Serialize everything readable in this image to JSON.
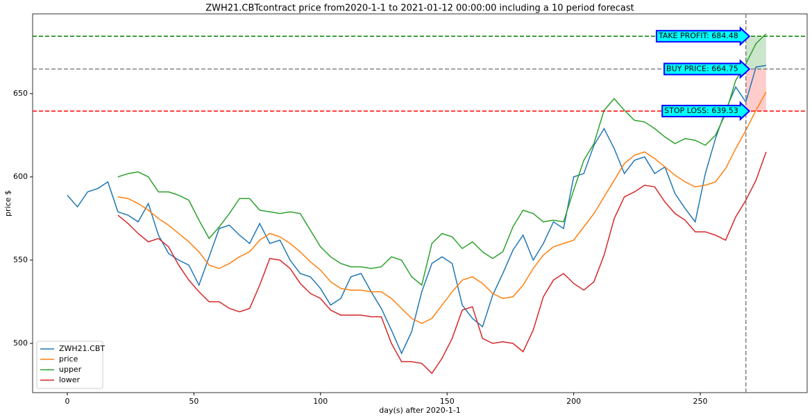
{
  "chart_data": {
    "type": "line",
    "title": "ZWH21.CBTcontract price from2020-1-1 to 2021-01-12 00:00:00 including a 10 period forecast",
    "xlabel": "day(s) after 2020-1-1",
    "ylabel": "price $",
    "x": [
      0,
      4,
      8,
      12,
      16,
      20,
      24,
      28,
      32,
      36,
      40,
      44,
      48,
      52,
      56,
      60,
      64,
      68,
      72,
      76,
      80,
      84,
      88,
      92,
      96,
      100,
      104,
      108,
      112,
      116,
      120,
      124,
      128,
      132,
      136,
      140,
      144,
      148,
      152,
      156,
      160,
      164,
      168,
      172,
      176,
      180,
      184,
      188,
      192,
      196,
      200,
      204,
      208,
      212,
      216,
      220,
      224,
      228,
      232,
      236,
      240,
      244,
      248,
      252,
      256,
      260,
      264,
      268,
      272,
      276
    ],
    "series": [
      {
        "name": "ZWH21.CBT",
        "color": "#1f77b4",
        "values": [
          589,
          582,
          591,
          593,
          597,
          579,
          577,
          573,
          584,
          565,
          554,
          550,
          547,
          535,
          552,
          569,
          571,
          565,
          560,
          572,
          560,
          562,
          550,
          542,
          540,
          533,
          523,
          527,
          540,
          542,
          531,
          521,
          508,
          494,
          507,
          531,
          548,
          552,
          548,
          523,
          515,
          510,
          529,
          542,
          556,
          565,
          550,
          560,
          573,
          569,
          600,
          602,
          619,
          629,
          617,
          602,
          610,
          612,
          602,
          606,
          590,
          581,
          573,
          602,
          623,
          640,
          654,
          645,
          666,
          667
        ]
      },
      {
        "name": "price",
        "color": "#ff7f0e",
        "values": [
          null,
          null,
          null,
          null,
          null,
          588,
          587,
          584,
          580,
          575,
          571,
          566,
          561,
          555,
          547,
          545,
          548,
          552,
          555,
          562,
          566,
          564,
          560,
          555,
          549,
          544,
          537,
          533,
          532,
          532,
          531,
          531,
          527,
          521,
          515,
          512,
          515,
          523,
          531,
          538,
          540,
          536,
          530,
          527,
          528,
          535,
          545,
          553,
          558,
          560,
          562,
          570,
          578,
          588,
          598,
          608,
          613,
          615,
          611,
          606,
          601,
          597,
          594,
          595,
          597,
          605,
          617,
          628,
          640,
          651
        ]
      },
      {
        "name": "upper",
        "color": "#2ca02c",
        "values": [
          null,
          null,
          null,
          null,
          null,
          600,
          602,
          603,
          600,
          591,
          591,
          589,
          586,
          574,
          563,
          570,
          578,
          587,
          587,
          580,
          579,
          578,
          579,
          578,
          568,
          558,
          552,
          548,
          546,
          546,
          545,
          546,
          552,
          550,
          540,
          535,
          560,
          566,
          564,
          557,
          561,
          555,
          551,
          555,
          570,
          580,
          578,
          573,
          574,
          573,
          592,
          610,
          620,
          640,
          647,
          640,
          634,
          633,
          629,
          624,
          620,
          623,
          622,
          619,
          625,
          638,
          658,
          668,
          680,
          686
        ]
      },
      {
        "name": "lower",
        "color": "#d62728",
        "values": [
          null,
          null,
          null,
          null,
          null,
          577,
          572,
          566,
          561,
          563,
          558,
          547,
          538,
          531,
          525,
          525,
          521,
          519,
          521,
          535,
          551,
          550,
          545,
          536,
          530,
          527,
          520,
          517,
          517,
          517,
          516,
          516,
          500,
          489,
          489,
          488,
          482,
          491,
          503,
          520,
          522,
          503,
          500,
          501,
          500,
          495,
          508,
          528,
          538,
          542,
          536,
          532,
          537,
          553,
          575,
          588,
          591,
          595,
          594,
          585,
          578,
          574,
          567,
          567,
          565,
          562,
          576,
          586,
          598,
          615
        ]
      }
    ],
    "hlines": [
      {
        "label": "TAKE PROFIT: 684.48",
        "value": 684.48,
        "color": "green"
      },
      {
        "label": "BUY PRICE: 664.75",
        "value": 664.75,
        "color": "gray"
      },
      {
        "label": "STOP LOSS: 639.53",
        "value": 639.53,
        "color": "red"
      }
    ],
    "vline": 268,
    "xlim": [
      -13.7,
      292.2
    ],
    "ylim": [
      470.4,
      697.9
    ],
    "xticks": [
      0,
      50,
      100,
      150,
      200,
      250
    ],
    "yticks": [
      500,
      550,
      600,
      650
    ],
    "legend": "lower left",
    "grid": false
  }
}
